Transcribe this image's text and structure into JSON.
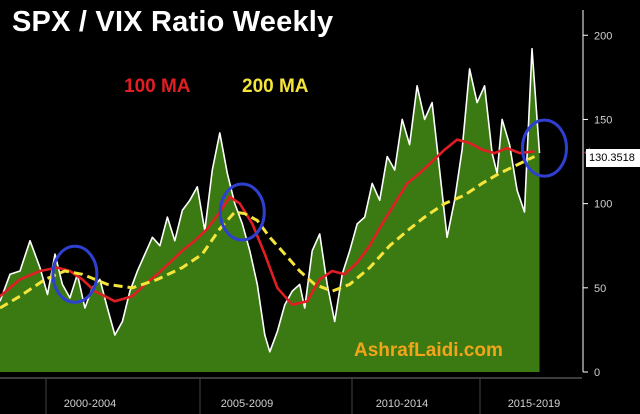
{
  "chart_data": {
    "type": "area",
    "title": "SPX / VIX Ratio Weekly",
    "xlabel": "",
    "ylabel": "",
    "x_tick_labels": [
      "2000-2004",
      "2005-2009",
      "2010-2014",
      "2015-2019"
    ],
    "y_ticks": [
      0,
      50,
      100,
      150,
      200
    ],
    "ylim": [
      0,
      215
    ],
    "xlim": [
      1998.2,
      2021.5
    ],
    "grid": false,
    "legend_placement": "top-left",
    "current_value_label": "130.3518",
    "current_value": 130.35,
    "watermark": "AshrafLaidi.com",
    "series": [
      {
        "name": "SPX / VIX",
        "style": "area",
        "color": "#ffffff",
        "fill": "#3b7a12",
        "x": [
          1998.2,
          1998.6,
          1999.0,
          1999.4,
          1999.8,
          2000.1,
          2000.4,
          2000.7,
          2001.0,
          2001.3,
          2001.6,
          2001.9,
          2002.2,
          2002.5,
          2002.8,
          2003.1,
          2003.4,
          2003.7,
          2004.0,
          2004.3,
          2004.6,
          2004.9,
          2005.2,
          2005.5,
          2005.8,
          2006.1,
          2006.4,
          2006.7,
          2007.0,
          2007.3,
          2007.6,
          2007.9,
          2008.2,
          2008.5,
          2008.8,
          2009.0,
          2009.3,
          2009.6,
          2009.9,
          2010.2,
          2010.4,
          2010.7,
          2011.0,
          2011.3,
          2011.6,
          2011.9,
          2012.2,
          2012.5,
          2012.8,
          2013.1,
          2013.4,
          2013.7,
          2014.0,
          2014.3,
          2014.6,
          2014.9,
          2015.2,
          2015.5,
          2015.8,
          2016.1,
          2016.4,
          2016.7,
          2017.0,
          2017.3,
          2017.6,
          2017.9,
          2018.1,
          2018.3,
          2018.6,
          2018.9,
          2019.2,
          2019.5,
          2019.8
        ],
        "values": [
          42,
          58,
          60,
          78,
          62,
          46,
          70,
          52,
          44,
          58,
          38,
          50,
          55,
          38,
          22,
          30,
          48,
          60,
          70,
          80,
          75,
          92,
          78,
          96,
          102,
          110,
          84,
          120,
          142,
          118,
          100,
          88,
          72,
          52,
          22,
          12,
          24,
          40,
          48,
          52,
          38,
          72,
          82,
          52,
          30,
          58,
          72,
          88,
          92,
          112,
          102,
          128,
          120,
          150,
          135,
          170,
          150,
          160,
          120,
          80,
          102,
          132,
          180,
          160,
          170,
          130,
          118,
          150,
          135,
          108,
          95,
          192,
          130
        ]
      },
      {
        "name": "100 MA",
        "style": "line",
        "color": "#e01e24",
        "x": [
          1998.2,
          1999.0,
          1999.8,
          2000.5,
          2001.0,
          2001.5,
          2002.0,
          2002.8,
          2003.5,
          2004.0,
          2004.5,
          2005.0,
          2005.5,
          2006.0,
          2006.5,
          2007.0,
          2007.4,
          2007.8,
          2008.3,
          2008.8,
          2009.3,
          2009.9,
          2010.5,
          2011.0,
          2011.5,
          2012.0,
          2012.5,
          2013.0,
          2013.5,
          2014.0,
          2014.5,
          2015.0,
          2015.5,
          2016.0,
          2016.5,
          2017.0,
          2017.5,
          2018.0,
          2018.5,
          2019.0,
          2019.6
        ],
        "values": [
          45,
          55,
          60,
          62,
          60,
          55,
          48,
          42,
          45,
          52,
          58,
          65,
          72,
          78,
          85,
          95,
          104,
          100,
          88,
          70,
          50,
          40,
          42,
          55,
          60,
          58,
          65,
          75,
          88,
          100,
          112,
          118,
          125,
          132,
          138,
          136,
          132,
          130,
          133,
          130,
          131
        ]
      },
      {
        "name": "200 MA",
        "style": "dashed",
        "color": "#f5e43a",
        "x": [
          1998.2,
          1999.0,
          2000.0,
          2000.8,
          2001.5,
          2002.5,
          2003.5,
          2004.5,
          2005.5,
          2006.3,
          2007.0,
          2007.6,
          2008.0,
          2008.5,
          2009.0,
          2009.6,
          2010.2,
          2010.8,
          2011.5,
          2012.2,
          2013.0,
          2013.8,
          2014.6,
          2015.2,
          2016.0,
          2016.8,
          2017.5,
          2018.2,
          2018.9,
          2019.6
        ],
        "values": [
          38,
          45,
          55,
          60,
          58,
          52,
          50,
          55,
          62,
          70,
          85,
          95,
          94,
          90,
          80,
          70,
          60,
          52,
          48,
          52,
          62,
          75,
          85,
          92,
          100,
          105,
          112,
          118,
          123,
          128
        ]
      }
    ]
  },
  "legend": {
    "ma100_label": "100 MA",
    "ma200_label": "200 MA",
    "ma100_color": "#e01e24",
    "ma200_color": "#f5e43a"
  },
  "highlight_circles": [
    {
      "x": 2001.2,
      "y": 58,
      "color": "#2f3fd0"
    },
    {
      "x": 2007.9,
      "y": 95,
      "color": "#2f3fd0"
    },
    {
      "x": 2020.0,
      "y": 133,
      "color": "#2f3fd0"
    }
  ],
  "colors": {
    "background": "#000000",
    "axis": "#ffffff",
    "watermark": "#f2a51a"
  }
}
